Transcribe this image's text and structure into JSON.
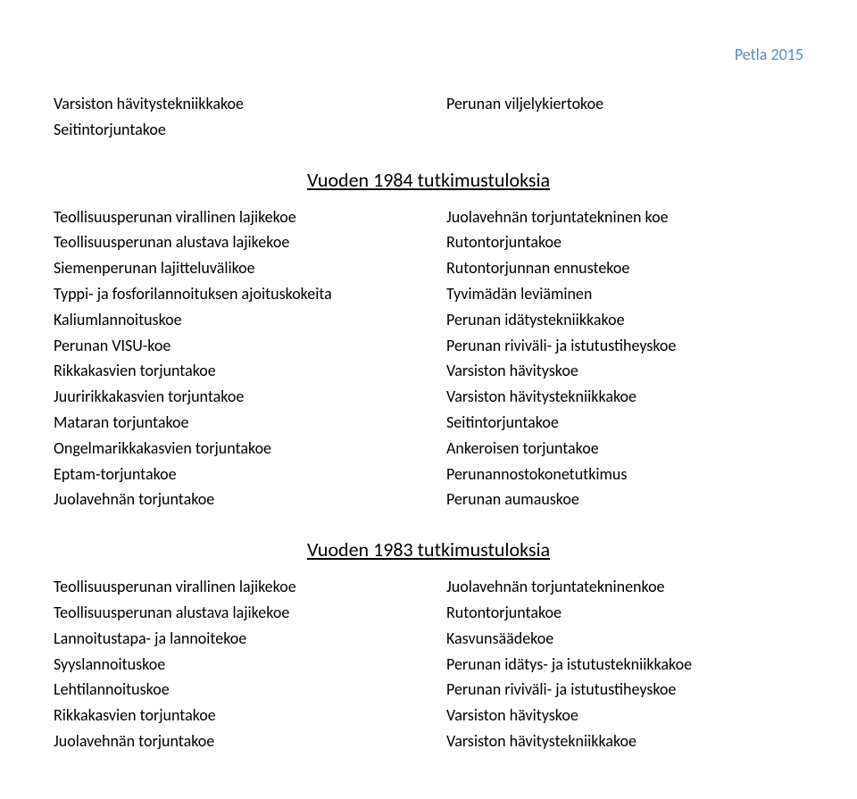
{
  "header": "Petla 2015",
  "top": {
    "left": [
      "Varsiston hävitystekniikkakoe",
      "Seitintorjuntakoe"
    ],
    "right": [
      "Perunan viljelykiertokoe"
    ]
  },
  "section1984": {
    "title": "Vuoden 1984 tutkimustuloksia",
    "left": [
      "Teollisuusperunan virallinen lajikekoe",
      "Teollisuusperunan alustava lajikekoe",
      "Siemenperunan lajitteluvälikoe",
      "Typpi- ja fosforilannoituksen ajoituskokeita",
      "Kaliumlannoituskoe",
      "Perunan VISU-koe",
      "Rikkakasvien torjuntakoe",
      "Juuririkkakasvien torjuntakoe",
      "Mataran torjuntakoe",
      "Ongelmarikkakasvien torjuntakoe",
      "Eptam-torjuntakoe",
      "Juolavehnän torjuntakoe"
    ],
    "right": [
      "Juolavehnän torjuntatekninen koe",
      "Rutontorjuntakoe",
      "Rutontorjunnan ennustekoe",
      "Tyvimädän leviäminen",
      "Perunan idätystekniikkakoe",
      "Perunan riviväli- ja istutustiheyskoe",
      "Varsiston hävityskoe",
      "Varsiston hävitystekniikkakoe",
      "Seitintorjuntakoe",
      "Ankeroisen torjuntakoe",
      "Perunannostokonetutkimus",
      "Perunan aumauskoe"
    ]
  },
  "section1983": {
    "title": "Vuoden 1983 tutkimustuloksia",
    "left": [
      "Teollisuusperunan virallinen lajikekoe",
      "Teollisuusperunan alustava lajikekoe",
      "Lannoitustapa- ja lannoitekoe",
      "Syyslannoituskoe",
      "Lehtilannoituskoe",
      "Rikkakasvien torjuntakoe",
      "Juolavehnän torjuntakoe"
    ],
    "right": [
      "Juolavehnän torjuntatekninenkoe",
      "Rutontorjuntakoe",
      "Kasvunsäädekoe",
      "Perunan idätys- ja istutustekniikkakoe",
      "Perunan riviväli- ja istutustiheyskoe",
      "Varsiston hävityskoe",
      "Varsiston hävitystekniikkakoe"
    ]
  }
}
